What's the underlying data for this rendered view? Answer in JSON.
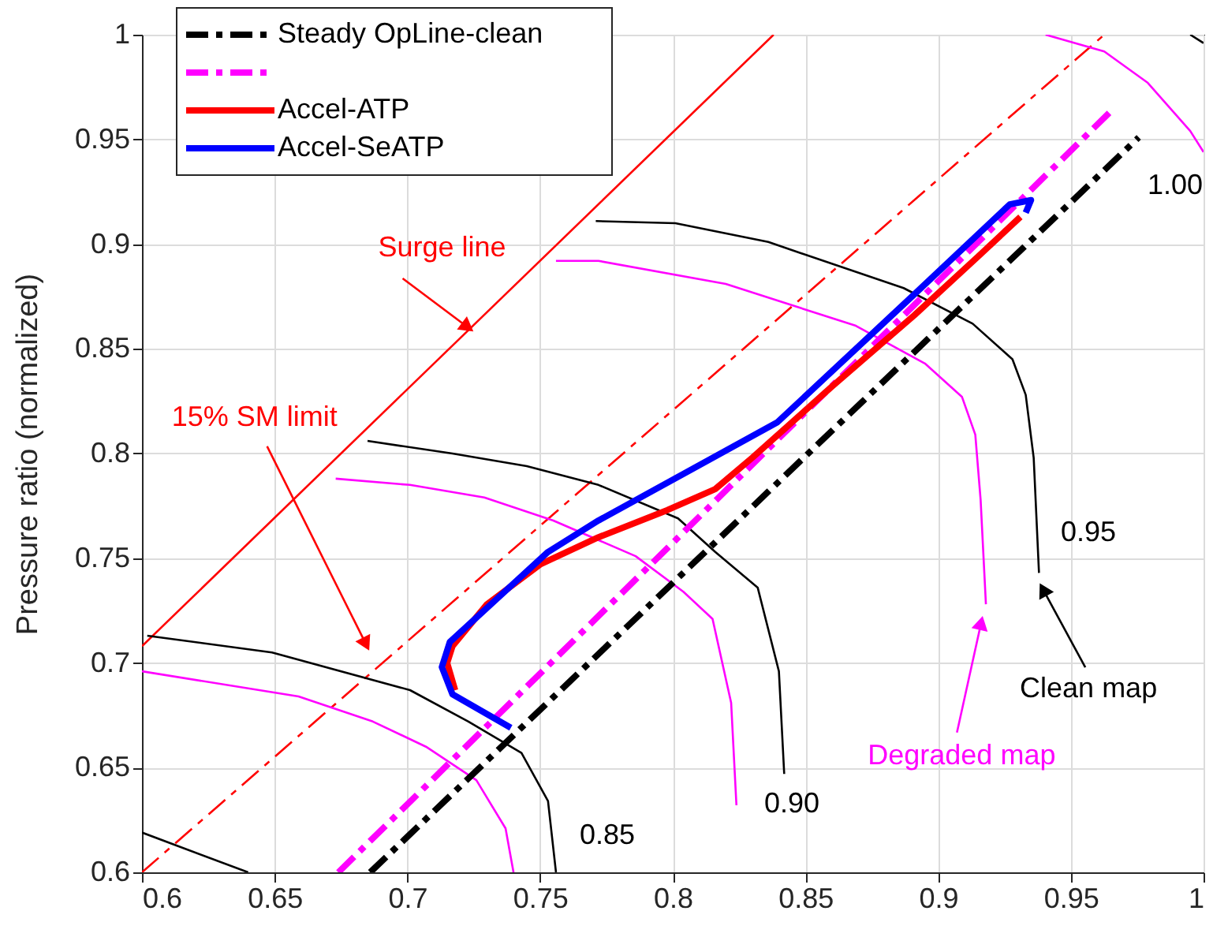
{
  "chart_data": {
    "type": "line",
    "ylabel": "Pressure ratio (normalized)",
    "xlim": [
      0.6,
      1
    ],
    "ylim": [
      0.6,
      1
    ],
    "xticks": [
      0.6,
      0.65,
      0.7,
      0.75,
      0.8,
      0.85,
      0.9,
      0.95,
      1
    ],
    "yticks": [
      0.6,
      0.65,
      0.7,
      0.75,
      0.8,
      0.85,
      0.9,
      0.95,
      1
    ],
    "grid": true,
    "legend": "top left",
    "marker": "none",
    "series": [
      {
        "color": "#ff0000",
        "x": [
          0.6,
          0.838
        ],
        "values": [
          0.708,
          1
        ]
      },
      {
        "color": "#ff0000",
        "line_style": "dashed",
        "x": [
          0.6,
          0.9626
        ],
        "values": [
          0.6,
          1
        ]
      },
      {
        "color": "#000000",
        "x": [
          0.6,
          0.64
        ],
        "values": [
          0.619,
          0.6
        ]
      },
      {
        "color": "#000000",
        "x": [
          0.602,
          0.649,
          0.701,
          0.723,
          0.743,
          0.753,
          0.756
        ],
        "values": [
          0.713,
          0.705,
          0.687,
          0.672,
          0.657,
          0.634,
          0.6
        ]
      },
      {
        "color": "#ff00ff",
        "x": [
          0.6,
          0.659,
          0.687,
          0.707,
          0.726,
          0.737,
          0.74
        ],
        "values": [
          0.696,
          0.684,
          0.672,
          0.66,
          0.644,
          0.621,
          0.6
        ]
      },
      {
        "color": "#000000",
        "x": [
          0.685,
          0.717,
          0.745,
          0.772,
          0.802,
          0.816,
          0.832,
          0.84,
          0.842
        ],
        "values": [
          0.806,
          0.8,
          0.794,
          0.785,
          0.769,
          0.753,
          0.736,
          0.696,
          0.647
        ]
      },
      {
        "color": "#ff00ff",
        "x": [
          0.673,
          0.701,
          0.729,
          0.755,
          0.786,
          0.804,
          0.815,
          0.822,
          0.824
        ],
        "values": [
          0.788,
          0.785,
          0.779,
          0.768,
          0.751,
          0.734,
          0.721,
          0.681,
          0.632
        ]
      },
      {
        "color": "#000000",
        "x": [
          0.771,
          0.801,
          0.836,
          0.887,
          0.913,
          0.928,
          0.933,
          0.936,
          0.938
        ],
        "values": [
          0.911,
          0.91,
          0.901,
          0.879,
          0.862,
          0.845,
          0.828,
          0.798,
          0.743
        ]
      },
      {
        "color": "#ff00ff",
        "x": [
          0.756,
          0.772,
          0.82,
          0.869,
          0.895,
          0.909,
          0.914,
          0.916,
          0.918
        ],
        "values": [
          0.892,
          0.892,
          0.881,
          0.861,
          0.843,
          0.827,
          0.809,
          0.778,
          0.728
        ]
      },
      {
        "color": "#000000",
        "x": [
          0.995,
          1.0
        ],
        "values": [
          1.0,
          0.996
        ]
      },
      {
        "color": "#ff00ff",
        "x": [
          0.9405,
          0.9626,
          0.979,
          0.995,
          1.0
        ],
        "values": [
          1.0,
          0.992,
          0.977,
          0.954,
          0.944
        ]
      },
      {
        "name": "Steady OpLine-clean",
        "color": "#000000",
        "line_style": "dashed",
        "x": [
          0.686,
          0.9756
        ],
        "values": [
          0.6,
          0.951
        ]
      },
      {
        "color": "#ff00ff",
        "line_style": "dashed",
        "x": [
          0.674,
          0.9655
        ],
        "values": [
          0.6,
          0.964
        ]
      },
      {
        "name": "Accel-ATP",
        "color": "#ff0000",
        "x": [
          0.718,
          0.715,
          0.717,
          0.73,
          0.75,
          0.772,
          0.798,
          0.816,
          0.83,
          0.86,
          0.891,
          0.915,
          0.931
        ],
        "values": [
          0.687,
          0.7,
          0.708,
          0.728,
          0.747,
          0.76,
          0.773,
          0.783,
          0.798,
          0.832,
          0.866,
          0.894,
          0.913
        ]
      },
      {
        "name": "Accel-SeATP",
        "color": "#0000ff",
        "x": [
          0.739,
          0.717,
          0.713,
          0.716,
          0.753,
          0.772,
          0.808,
          0.8395,
          0.891,
          0.927,
          0.935,
          0.933
        ],
        "values": [
          0.669,
          0.685,
          0.698,
          0.71,
          0.753,
          0.768,
          0.793,
          0.815,
          0.876,
          0.919,
          0.921,
          0.915
        ]
      }
    ],
    "annotations": [
      {
        "text": "Surge line",
        "x": 0.722,
        "y": 0.861
      },
      {
        "text": "15% SM limit",
        "x": 0.684,
        "y": 0.71
      },
      {
        "text": "Clean map",
        "x": 0.94,
        "y": 0.734
      },
      {
        "text": "Degraded map",
        "x": 0.916,
        "y": 0.718
      },
      "0.85",
      "0.90",
      "0.95",
      "1.00"
    ]
  }
}
